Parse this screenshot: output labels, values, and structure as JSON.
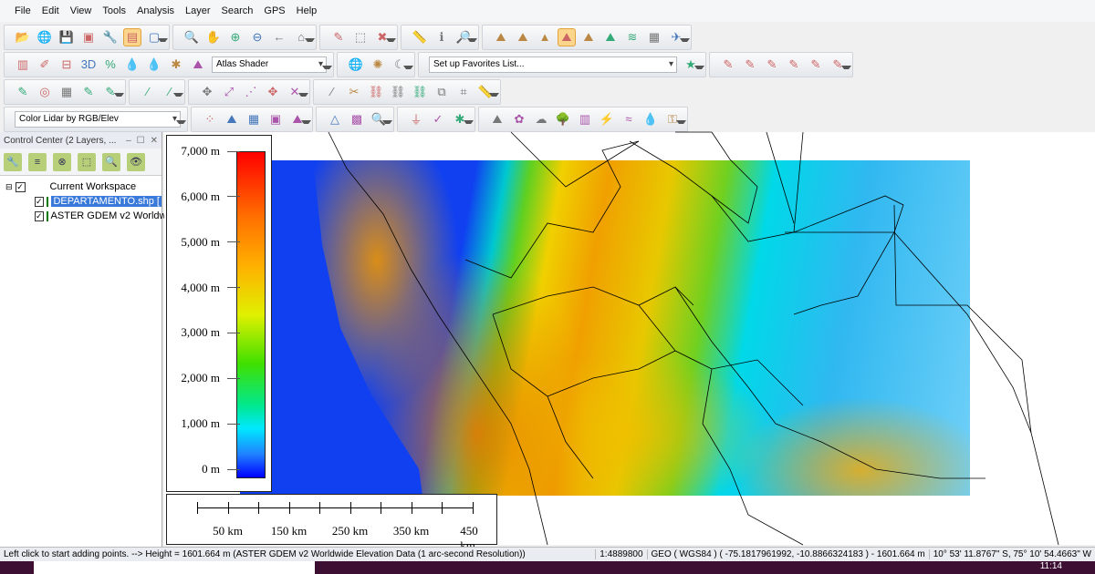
{
  "menu": [
    "File",
    "Edit",
    "View",
    "Tools",
    "Analysis",
    "Layer",
    "Search",
    "GPS",
    "Help"
  ],
  "toolbars": {
    "row1": [
      [
        "open-folder",
        "📂"
      ],
      [
        "globe",
        "🌐"
      ],
      [
        "save",
        "💾"
      ],
      [
        "export",
        "▣"
      ],
      [
        "wrench",
        "🔧"
      ],
      [
        "layers",
        "▤",
        true
      ],
      [
        "overview",
        "▢"
      ],
      [
        "|"
      ],
      [
        "zoom-tool",
        "🔍"
      ],
      [
        "pan-hand",
        "✋"
      ],
      [
        "zoom-in",
        "⊕"
      ],
      [
        "zoom-out",
        "⊖"
      ],
      [
        "back-arrow",
        "←"
      ],
      [
        "home",
        "⌂"
      ],
      [
        "|"
      ],
      [
        "pencil",
        "✎"
      ],
      [
        "select-box",
        "⬚"
      ],
      [
        "delete",
        "✖"
      ],
      [
        "|"
      ],
      [
        "measure",
        "📏"
      ],
      [
        "info",
        "ℹ"
      ],
      [
        "search-feature",
        "🔎"
      ],
      [
        "|"
      ],
      [
        "terrain-1",
        "⛰"
      ],
      [
        "terrain-2",
        "⛰"
      ],
      [
        "terrain-3",
        "▲"
      ],
      [
        "path-profile",
        "⛰",
        true
      ],
      [
        "view-shed",
        "⛰"
      ],
      [
        "contour",
        "⛰"
      ],
      [
        "3d-view",
        "≋"
      ],
      [
        "map-layout",
        "▦"
      ],
      [
        "airplane",
        "✈"
      ]
    ],
    "row2": [
      [
        "tool-a",
        "▥"
      ],
      [
        "tool-b",
        "✐"
      ],
      [
        "tool-c",
        "⊟"
      ],
      [
        "3d",
        "3D"
      ],
      [
        "percent",
        "%"
      ],
      [
        "water-1",
        "💧"
      ],
      [
        "water-2",
        "💧"
      ],
      [
        "bug",
        "✱"
      ],
      [
        "shader-icon",
        "⛰"
      ]
    ],
    "row3": [
      [
        "lidar-1",
        "✎"
      ],
      [
        "target",
        "◎"
      ],
      [
        "grid",
        "▦"
      ],
      [
        "lidar-2",
        "✎"
      ],
      [
        "lidar-3",
        "✎"
      ],
      [
        "|"
      ],
      [
        "lidar-4",
        "⁄"
      ],
      [
        "lidar-5",
        "⁄"
      ],
      [
        "|"
      ],
      [
        "move",
        "✥"
      ],
      [
        "scale",
        "⤢"
      ],
      [
        "nodes",
        "⋰"
      ],
      [
        "rotate",
        "✥"
      ],
      [
        "split",
        "✕"
      ],
      [
        "|"
      ],
      [
        "line",
        "⁄"
      ],
      [
        "cut",
        "✂"
      ],
      [
        "attach",
        "⛓"
      ],
      [
        "join",
        "⛓"
      ],
      [
        "connect",
        "⛓"
      ],
      [
        "copy",
        "⧉"
      ],
      [
        "crop",
        "⌗"
      ],
      [
        "ruler",
        "📏"
      ]
    ],
    "row4": [
      [
        "lidar-filter",
        "⁘"
      ],
      [
        "mountain",
        "⛰"
      ],
      [
        "building",
        "▦"
      ],
      [
        "image",
        "▣"
      ],
      [
        "hills",
        "⛰"
      ],
      [
        "|"
      ],
      [
        "triangle",
        "△"
      ],
      [
        "hatch",
        "▩"
      ],
      [
        "zoom-lidar",
        "🔍"
      ],
      [
        "|"
      ],
      [
        "filter",
        "⏚"
      ],
      [
        "check",
        "✓"
      ],
      [
        "cluster",
        "✱"
      ],
      [
        "|"
      ],
      [
        "peak",
        "⛰"
      ],
      [
        "grass",
        "✿"
      ],
      [
        "bush",
        "☁"
      ],
      [
        "tree",
        "🌳"
      ],
      [
        "tower",
        "▥"
      ],
      [
        "powerline",
        "⚡"
      ],
      [
        "water",
        "≈"
      ],
      [
        "drop",
        "💧"
      ],
      [
        "key",
        "⚿"
      ]
    ],
    "shader": "Atlas Shader",
    "favorites": "Set up Favorites List...",
    "lidar_mode": "Color Lidar by RGB/Elev"
  },
  "control_center": {
    "title": "Control Center (2 Layers, ...",
    "workspace": "Current Workspace",
    "layers": [
      {
        "name": "DEPARTAMENTO.shp [",
        "selected": true
      },
      {
        "name": "ASTER GDEM v2 Worldwide",
        "selected": false
      }
    ]
  },
  "legend": {
    "ticks": [
      "7,000 m",
      "6,000 m",
      "5,000 m",
      "4,000 m",
      "3,000 m",
      "2,000 m",
      "1,000 m",
      "0 m"
    ]
  },
  "scalebar": {
    "labels": [
      "50 km",
      "150 km",
      "250 km",
      "350 km",
      "450 km"
    ]
  },
  "status": {
    "message": "Left click to start adding points. --> Height = 1601.664 m (ASTER GDEM v2 Worldwide Elevation Data (1 arc-second Resolution))",
    "scale": "1:4889800",
    "coords": "GEO ( WGS84 ) ( -75.1817961992, -10.8866324183 ) - 1601.664 m",
    "dms": "10° 53' 11.8767\" S, 75° 10' 54.4663\" W"
  },
  "taskbar": {
    "time": "11:14"
  }
}
